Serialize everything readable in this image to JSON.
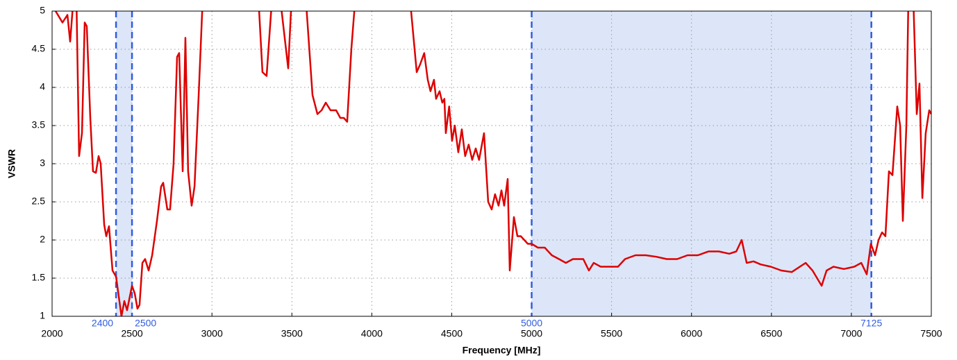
{
  "chart_data": {
    "type": "line",
    "xlabel": "Frequency [MHz]",
    "ylabel": "VSWR",
    "color": "#dd0000",
    "band_color": "#dce6f8",
    "band_edge_color": "#2f5ce0",
    "bands": [
      {
        "start": 2400,
        "end": 2500
      },
      {
        "start": 5000,
        "end": 7125
      }
    ],
    "x": [
      2022,
      2065,
      2096,
      2113,
      2135,
      2152,
      2169,
      2187,
      2204,
      2217,
      2239,
      2256,
      2274,
      2291,
      2304,
      2326,
      2339,
      2356,
      2378,
      2400,
      2421,
      2434,
      2452,
      2469,
      2500,
      2517,
      2534,
      2547,
      2565,
      2582,
      2604,
      2626,
      2656,
      2682,
      2695,
      2721,
      2738,
      2760,
      2782,
      2795,
      2817,
      2834,
      2851,
      2873,
      2891,
      2917,
      2943,
      3290,
      3316,
      3342,
      3377,
      3425,
      3477,
      3499,
      3586,
      3629,
      3660,
      3686,
      3712,
      3742,
      3777,
      3803,
      3825,
      3846,
      3872,
      3898,
      4237,
      4281,
      4302,
      4328,
      4350,
      4367,
      4389,
      4402,
      4424,
      4441,
      4454,
      4463,
      4484,
      4502,
      4519,
      4541,
      4563,
      4584,
      4606,
      4628,
      4650,
      4671,
      4702,
      4728,
      4750,
      4771,
      4793,
      4811,
      4828,
      4850,
      4863,
      4889,
      4911,
      4932,
      4954,
      4976,
      5000,
      5039,
      5082,
      5126,
      5171,
      5214,
      5258,
      5323,
      5358,
      5388,
      5432,
      5497,
      5540,
      5584,
      5649,
      5714,
      5780,
      5845,
      5910,
      5975,
      6040,
      6106,
      6171,
      6236,
      6280,
      6314,
      6345,
      6388,
      6432,
      6496,
      6562,
      6627,
      6714,
      6757,
      6814,
      6845,
      6888,
      6953,
      7018,
      7062,
      7096,
      7122,
      7148,
      7170,
      7192,
      7213,
      7235,
      7257,
      7287,
      7305,
      7322,
      7344,
      7357,
      7387,
      7409,
      7426,
      7444,
      7465,
      7487,
      7500
    ],
    "values": [
      5.0,
      4.85,
      4.95,
      4.6,
      5.2,
      5.2,
      3.1,
      3.4,
      4.85,
      4.8,
      3.6,
      2.9,
      2.88,
      3.1,
      3.0,
      2.2,
      2.05,
      2.18,
      1.6,
      1.52,
      1.2,
      1.0,
      1.2,
      1.08,
      1.4,
      1.3,
      1.1,
      1.15,
      1.7,
      1.75,
      1.6,
      1.8,
      2.25,
      2.7,
      2.75,
      2.4,
      2.4,
      3.0,
      4.4,
      4.45,
      2.9,
      4.65,
      2.9,
      2.45,
      2.7,
      3.9,
      5.2,
      5.2,
      4.2,
      4.15,
      5.2,
      5.2,
      4.25,
      5.2,
      5.2,
      3.9,
      3.65,
      3.7,
      3.8,
      3.7,
      3.7,
      3.6,
      3.6,
      3.55,
      4.5,
      5.2,
      5.2,
      4.2,
      4.3,
      4.45,
      4.1,
      3.95,
      4.1,
      3.85,
      3.95,
      3.8,
      3.85,
      3.4,
      3.75,
      3.3,
      3.5,
      3.15,
      3.45,
      3.1,
      3.25,
      3.05,
      3.2,
      3.05,
      3.4,
      2.5,
      2.4,
      2.6,
      2.45,
      2.65,
      2.45,
      2.8,
      1.6,
      2.3,
      2.05,
      2.05,
      2.0,
      1.95,
      1.95,
      1.9,
      1.9,
      1.8,
      1.75,
      1.7,
      1.75,
      1.75,
      1.6,
      1.7,
      1.65,
      1.65,
      1.65,
      1.75,
      1.8,
      1.8,
      1.78,
      1.75,
      1.75,
      1.8,
      1.8,
      1.85,
      1.85,
      1.82,
      1.85,
      2.0,
      1.7,
      1.72,
      1.68,
      1.65,
      1.6,
      1.58,
      1.7,
      1.6,
      1.4,
      1.6,
      1.65,
      1.62,
      1.65,
      1.7,
      1.55,
      1.95,
      1.8,
      2.0,
      2.1,
      2.05,
      2.9,
      2.85,
      3.75,
      3.5,
      2.25,
      3.5,
      5.2,
      5.2,
      3.65,
      4.05,
      2.55,
      3.4,
      3.7,
      3.65
    ],
    "xlim": [
      2000,
      7500
    ],
    "ylim": [
      1,
      5
    ],
    "xticks": [
      2000,
      2500,
      3000,
      3500,
      4000,
      4500,
      5000,
      5500,
      6000,
      6500,
      7000,
      7500
    ],
    "yticks": [
      1,
      1.5,
      2,
      2.5,
      3,
      3.5,
      4,
      4.5,
      5
    ],
    "grid": true
  }
}
